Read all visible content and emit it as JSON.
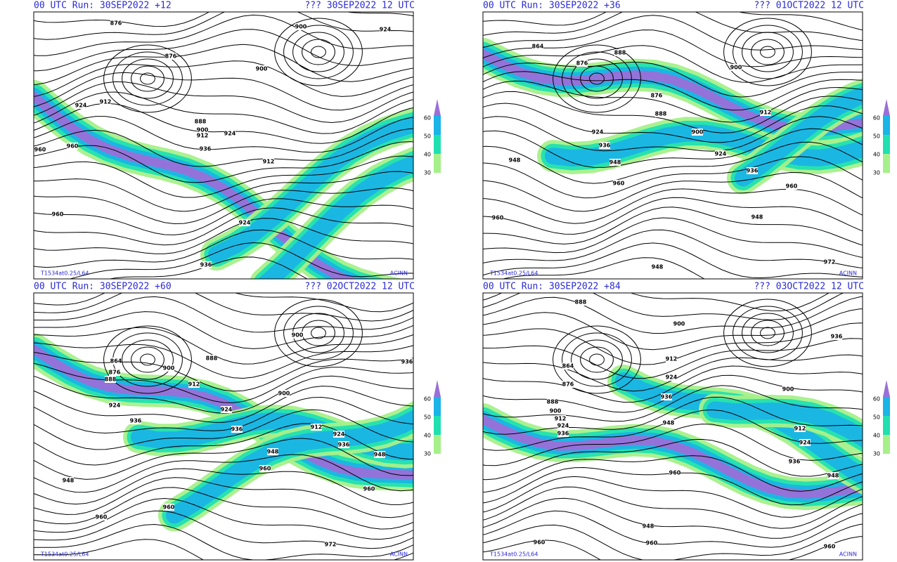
{
  "legend": [
    60,
    50,
    40,
    30
  ],
  "panels": [
    {
      "header_left": "00 UTC Run: 30SEP2022 +12",
      "header_right": "??? 30SEP2022 12 UTC",
      "footer_left": "T1534at0.25/L64",
      "footer_right": "ACINN",
      "contour_labels": [
        876,
        876,
        900,
        924,
        924,
        912,
        888,
        900,
        912,
        924,
        936,
        960,
        960,
        900,
        912,
        924,
        936,
        960
      ]
    },
    {
      "header_left": "00 UTC Run: 30SEP2022 +36",
      "header_right": "??? 01OCT2022 12 UTC",
      "footer_left": "T1534at0.25/L64",
      "footer_right": "ACINN",
      "contour_labels": [
        864,
        876,
        888,
        900,
        876,
        888,
        900,
        912,
        924,
        936,
        948,
        948,
        960,
        924,
        936,
        960,
        948,
        960,
        948,
        972
      ]
    },
    {
      "header_left": "00 UTC Run: 30SEP2022 +60",
      "header_right": "??? 02OCT2022 12 UTC",
      "footer_left": "T1534at0.25/L64",
      "footer_right": "ACINN",
      "contour_labels": [
        864,
        876,
        888,
        900,
        888,
        912,
        924,
        936,
        900,
        924,
        936,
        948,
        960,
        912,
        924,
        936,
        948,
        960,
        948,
        960,
        900,
        936,
        960,
        972
      ]
    },
    {
      "header_left": "00 UTC Run: 30SEP2022 +84",
      "header_right": "??? 03OCT2022 12 UTC",
      "footer_left": "T1534at0.25/L64",
      "footer_right": "ACINN",
      "contour_labels": [
        888,
        900,
        864,
        876,
        888,
        900,
        912,
        924,
        936,
        912,
        924,
        936,
        948,
        960,
        900,
        912,
        924,
        936,
        948,
        936,
        948,
        960,
        960,
        960
      ]
    }
  ]
}
